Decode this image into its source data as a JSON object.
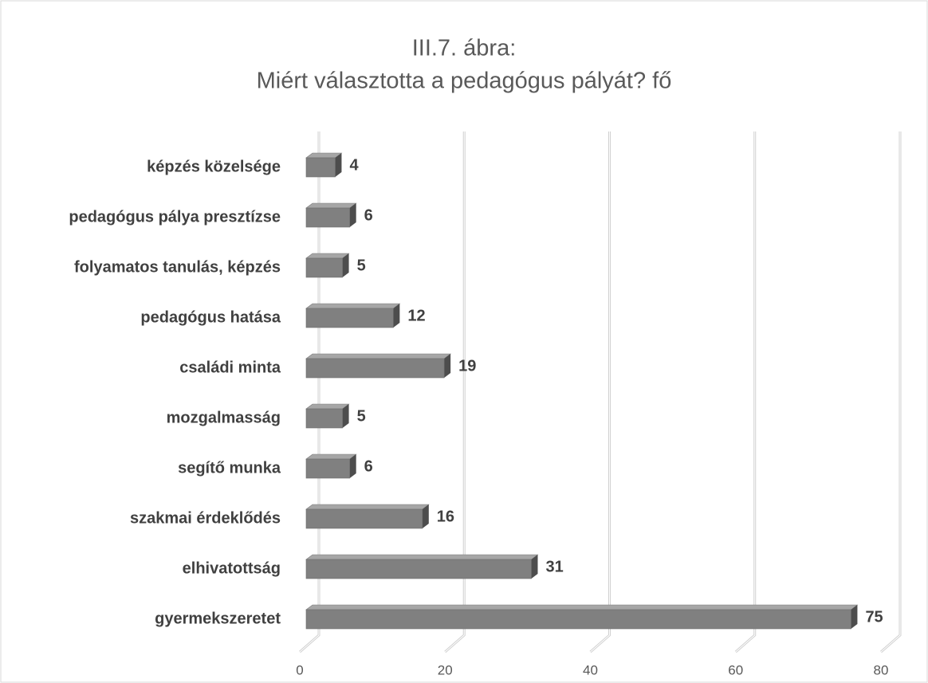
{
  "chart_data": {
    "type": "bar3d_horizontal",
    "title": [
      "III.7. ábra:",
      "Miért választotta a pedagógus pályát? fő"
    ],
    "categories": [
      "képzés közelsége",
      "pedagógus pálya presztízse",
      "folyamatos tanulás, képzés",
      "pedagógus hatása",
      "családi minta",
      "mozgalmasság",
      "segítő munka",
      "szakmai érdeklődés",
      "elhivatottság",
      "gyermekszeretet"
    ],
    "values": [
      4,
      6,
      5,
      12,
      19,
      5,
      6,
      16,
      31,
      75
    ],
    "color": "#808080",
    "xlim": [
      0,
      80
    ],
    "xticks": [
      0,
      20,
      40,
      60,
      80
    ],
    "grid": true
  }
}
